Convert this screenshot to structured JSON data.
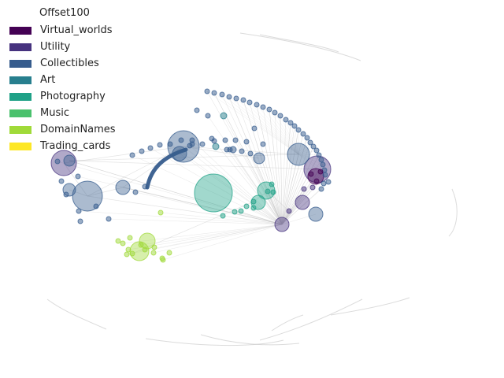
{
  "legend": {
    "title": "Offset100",
    "items": [
      {
        "label": "Virtual_worlds",
        "color": "#440154"
      },
      {
        "label": "Utility",
        "color": "#46327e"
      },
      {
        "label": "Collectibles",
        "color": "#365c8d"
      },
      {
        "label": "Art",
        "color": "#277f8e"
      },
      {
        "label": "Photography",
        "color": "#1fa187"
      },
      {
        "label": "Music",
        "color": "#4ac16d"
      },
      {
        "label": "DomainNames",
        "color": "#a0da39"
      },
      {
        "label": "Trading_cards",
        "color": "#fde725"
      }
    ]
  }
}
